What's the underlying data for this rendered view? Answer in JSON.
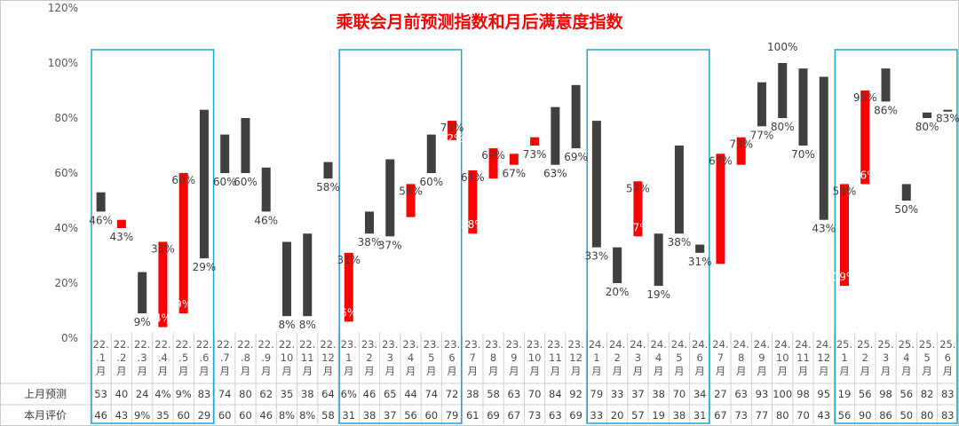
{
  "chart_data": {
    "type": "floating-bar",
    "title": "乘联会月前预测指数和月后满意度指数",
    "yticks": [
      "0%",
      "20%",
      "40%",
      "60%",
      "80%",
      "100%",
      "120%"
    ],
    "ylim": [
      0,
      120
    ],
    "categories": [
      [
        "22.",
        ".1",
        "月"
      ],
      [
        "22.",
        ".2",
        "月"
      ],
      [
        "22.",
        ".3",
        "月"
      ],
      [
        "22.",
        ".4",
        "月"
      ],
      [
        "22.",
        ".5",
        "月"
      ],
      [
        "22.",
        ".6",
        "月"
      ],
      [
        "22.",
        ".7",
        "月"
      ],
      [
        "22.",
        ".8",
        "月"
      ],
      [
        "22.",
        ".9",
        "月"
      ],
      [
        "22.",
        "10",
        "月"
      ],
      [
        "22.",
        "11",
        "月"
      ],
      [
        "22.",
        "12",
        "月"
      ],
      [
        "23.",
        "1",
        "月"
      ],
      [
        "23.",
        "2",
        "月"
      ],
      [
        "23.",
        "3",
        "月"
      ],
      [
        "23.",
        "4",
        "月"
      ],
      [
        "23.",
        "5",
        "月"
      ],
      [
        "23.",
        "6",
        "月"
      ],
      [
        "23.",
        "7",
        "月"
      ],
      [
        "23.",
        "8",
        "月"
      ],
      [
        "23.",
        "9",
        "月"
      ],
      [
        "23.",
        "10",
        "月"
      ],
      [
        "23.",
        "11",
        "月"
      ],
      [
        "23.",
        "12",
        "月"
      ],
      [
        "24.",
        "1",
        "月"
      ],
      [
        "24.",
        "2",
        "月"
      ],
      [
        "24.",
        "3",
        "月"
      ],
      [
        "24.",
        "4",
        "月"
      ],
      [
        "24.",
        "5",
        "月"
      ],
      [
        "24.",
        "6",
        "月"
      ],
      [
        "24.",
        "7",
        "月"
      ],
      [
        "24.",
        "8",
        "月"
      ],
      [
        "24.",
        "9",
        "月"
      ],
      [
        "24.",
        "10",
        "月"
      ],
      [
        "24.",
        "11",
        "月"
      ],
      [
        "24.",
        "12",
        "月"
      ],
      [
        "25.",
        "1",
        "月"
      ],
      [
        "25.",
        "2",
        "月"
      ],
      [
        "25.",
        "3",
        "月"
      ],
      [
        "25.",
        "4",
        "月"
      ],
      [
        "25.",
        "5",
        "月"
      ],
      [
        "25.",
        "6",
        "月"
      ]
    ],
    "series": [
      {
        "name": "上月预测",
        "values": [
          53,
          40,
          24,
          4,
          9,
          83,
          74,
          80,
          62,
          35,
          38,
          64,
          6,
          46,
          65,
          44,
          74,
          72,
          38,
          58,
          63,
          70,
          84,
          92,
          79,
          33,
          37,
          38,
          70,
          34,
          27,
          63,
          93,
          100,
          98,
          95,
          19,
          56,
          98,
          56,
          82,
          83
        ]
      },
      {
        "name": "本月评价",
        "values": [
          46,
          43,
          9,
          35,
          60,
          29,
          60,
          60,
          46,
          8,
          8,
          58,
          31,
          38,
          37,
          56,
          60,
          79,
          61,
          69,
          67,
          73,
          63,
          69,
          33,
          20,
          57,
          19,
          38,
          31,
          67,
          73,
          77,
          80,
          70,
          43,
          56,
          90,
          86,
          50,
          80,
          83
        ]
      }
    ],
    "table_rows": [
      {
        "label": "上月预测",
        "cells": [
          "53",
          "40",
          "24",
          "4%",
          "9%",
          "83",
          "74",
          "80",
          "62",
          "35",
          "38",
          "64",
          "6%",
          "46",
          "65",
          "44",
          "74",
          "72",
          "38",
          "58",
          "63",
          "70",
          "84",
          "92",
          "79",
          "33",
          "37",
          "38",
          "70",
          "34",
          "27",
          "63",
          "93",
          "100",
          "98",
          "95",
          "19",
          "56",
          "98",
          "56",
          "82",
          "83"
        ]
      },
      {
        "label": "本月评价",
        "cells": [
          "46",
          "43",
          "9%",
          "35",
          "60",
          "29",
          "60",
          "60",
          "46",
          "8%",
          "8%",
          "58",
          "31",
          "38",
          "37",
          "56",
          "60",
          "79",
          "61",
          "69",
          "67",
          "73",
          "63",
          "69",
          "33",
          "20",
          "57",
          "19",
          "38",
          "31",
          "67",
          "73",
          "77",
          "80",
          "70",
          "43",
          "56",
          "90",
          "86",
          "50",
          "80",
          "83"
        ]
      }
    ],
    "bar_colors": {
      "up": "#ff0000",
      "down": "#404040"
    },
    "box_color": "#1fa2d6",
    "highlight_label_color": "#ff0000",
    "boxes": [
      [
        0,
        5
      ],
      [
        12,
        17
      ],
      [
        24,
        29
      ],
      [
        36,
        41
      ]
    ],
    "point_labels": [
      {
        "i": 0,
        "text": "46%",
        "color": "dark",
        "anchor": "below"
      },
      {
        "i": 1,
        "text": "43%",
        "color": "dark",
        "anchor": "below"
      },
      {
        "i": 2,
        "text": "9%",
        "color": "dark",
        "anchor": "below"
      },
      {
        "i": 3,
        "text": "35%",
        "color": "dark",
        "anchor": "top"
      },
      {
        "i": 3,
        "text": "4%",
        "color": "white",
        "anchor": "inside-low"
      },
      {
        "i": 4,
        "text": "60%",
        "color": "dark",
        "anchor": "top"
      },
      {
        "i": 4,
        "text": "9%",
        "color": "white",
        "anchor": "inside-low"
      },
      {
        "i": 5,
        "text": "29%",
        "color": "dark",
        "anchor": "below"
      },
      {
        "i": 6,
        "text": "60%",
        "color": "dark",
        "anchor": "below"
      },
      {
        "i": 7,
        "text": "60%",
        "color": "dark",
        "anchor": "below"
      },
      {
        "i": 8,
        "text": "46%",
        "color": "dark",
        "anchor": "below"
      },
      {
        "i": 9,
        "text": "8%",
        "color": "dark",
        "anchor": "below"
      },
      {
        "i": 10,
        "text": "8%",
        "color": "dark",
        "anchor": "below"
      },
      {
        "i": 11,
        "text": "58%",
        "color": "dark",
        "anchor": "below"
      },
      {
        "i": 12,
        "text": "31%",
        "color": "dark",
        "anchor": "top"
      },
      {
        "i": 12,
        "text": "6%",
        "color": "white",
        "anchor": "inside-low"
      },
      {
        "i": 13,
        "text": "38%",
        "color": "dark",
        "anchor": "below"
      },
      {
        "i": 14,
        "text": "37%",
        "color": "dark",
        "anchor": "below"
      },
      {
        "i": 15,
        "text": "56%",
        "color": "dark",
        "anchor": "top"
      },
      {
        "i": 16,
        "text": "60%",
        "color": "dark",
        "anchor": "below"
      },
      {
        "i": 17,
        "text": "79%",
        "color": "dark",
        "anchor": "top"
      },
      {
        "i": 17,
        "text": "72%",
        "color": "white",
        "anchor": "inside-high"
      },
      {
        "i": 18,
        "text": "61%",
        "color": "dark",
        "anchor": "top"
      },
      {
        "i": 18,
        "text": "38%",
        "color": "white",
        "anchor": "inside-low"
      },
      {
        "i": 19,
        "text": "69%",
        "color": "dark",
        "anchor": "top"
      },
      {
        "i": 20,
        "text": "67%",
        "color": "dark",
        "anchor": "below"
      },
      {
        "i": 21,
        "text": "73%",
        "color": "dark",
        "anchor": "below"
      },
      {
        "i": 22,
        "text": "63%",
        "color": "dark",
        "anchor": "below"
      },
      {
        "i": 23,
        "text": "69%",
        "color": "dark",
        "anchor": "below"
      },
      {
        "i": 24,
        "text": "33%",
        "color": "dark",
        "anchor": "below"
      },
      {
        "i": 25,
        "text": "20%",
        "color": "dark",
        "anchor": "below"
      },
      {
        "i": 26,
        "text": "57%",
        "color": "dark",
        "anchor": "top"
      },
      {
        "i": 26,
        "text": "37%",
        "color": "white",
        "anchor": "inside-low"
      },
      {
        "i": 27,
        "text": "19%",
        "color": "dark",
        "anchor": "below"
      },
      {
        "i": 28,
        "text": "38%",
        "color": "dark",
        "anchor": "below"
      },
      {
        "i": 29,
        "text": "31%",
        "color": "dark",
        "anchor": "below"
      },
      {
        "i": 30,
        "text": "67%",
        "color": "dark",
        "anchor": "top"
      },
      {
        "i": 31,
        "text": "73%",
        "color": "dark",
        "anchor": "top"
      },
      {
        "i": 32,
        "text": "77%",
        "color": "dark",
        "anchor": "below"
      },
      {
        "i": 33,
        "text": "100%",
        "color": "red",
        "anchor": "above"
      },
      {
        "i": 33,
        "text": "80%",
        "color": "dark",
        "anchor": "below"
      },
      {
        "i": 34,
        "text": "70%",
        "color": "dark",
        "anchor": "below"
      },
      {
        "i": 35,
        "text": "43%",
        "color": "dark",
        "anchor": "below"
      },
      {
        "i": 36,
        "text": "56%",
        "color": "dark",
        "anchor": "top"
      },
      {
        "i": 36,
        "text": "19%",
        "color": "white",
        "anchor": "inside-low"
      },
      {
        "i": 37,
        "text": "90%",
        "color": "dark",
        "anchor": "top"
      },
      {
        "i": 37,
        "text": "56%",
        "color": "white",
        "anchor": "inside-low"
      },
      {
        "i": 38,
        "text": "86%",
        "color": "dark",
        "anchor": "below"
      },
      {
        "i": 39,
        "text": "50%",
        "color": "dark",
        "anchor": "below"
      },
      {
        "i": 40,
        "text": "80%",
        "color": "dark",
        "anchor": "below"
      },
      {
        "i": 41,
        "text": "83%",
        "color": "dark",
        "anchor": "below"
      }
    ]
  }
}
